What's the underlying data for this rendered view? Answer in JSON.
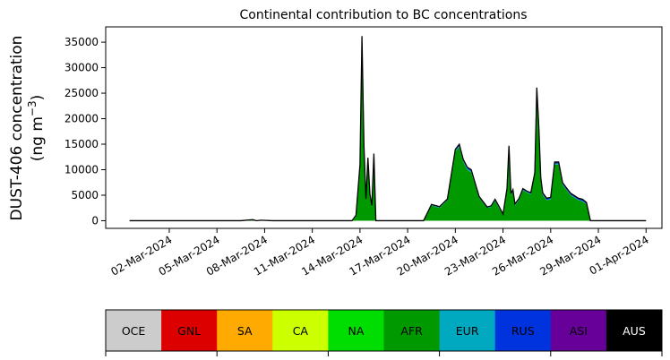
{
  "chart_data": {
    "type": "area",
    "title": "Continental contribution to BC concentrations",
    "ylabel_line1": "DUST-406 concentration",
    "ylabel_line2_prefix": "(ng m",
    "ylabel_line2_sup": "−3",
    "ylabel_line2_suffix": ")",
    "xlabel": "",
    "ylim": [
      -1500,
      38000
    ],
    "xlim": [
      "2024-02-27",
      "2024-04-02"
    ],
    "yticks": [
      0,
      5000,
      10000,
      15000,
      20000,
      25000,
      30000,
      35000
    ],
    "ytick_labels": [
      "0",
      "5000",
      "10000",
      "15000",
      "20000",
      "25000",
      "30000",
      "35000"
    ],
    "xticks": [
      "2024-03-02",
      "2024-03-05",
      "2024-03-08",
      "2024-03-11",
      "2024-03-14",
      "2024-03-17",
      "2024-03-20",
      "2024-03-23",
      "2024-03-26",
      "2024-03-29",
      "2024-04-01"
    ],
    "xtick_labels": [
      "02-Mar-2024",
      "05-Mar-2024",
      "08-Mar-2024",
      "11-Mar-2024",
      "14-Mar-2024",
      "17-Mar-2024",
      "20-Mar-2024",
      "23-Mar-2024",
      "26-Mar-2024",
      "29-Mar-2024",
      "01-Apr-2024"
    ],
    "x": [
      "2024-02-28T12:00",
      "2024-03-01T00:00",
      "2024-03-03T00:00",
      "2024-03-05T00:00",
      "2024-03-06T12:00",
      "2024-03-07T06:00",
      "2024-03-07T12:00",
      "2024-03-07T18:00",
      "2024-03-08T12:00",
      "2024-03-10T00:00",
      "2024-03-12T00:00",
      "2024-03-13T00:00",
      "2024-03-13T12:00",
      "2024-03-13T18:00",
      "2024-03-14T00:00",
      "2024-03-14T03:00",
      "2024-03-14T06:00",
      "2024-03-14T09:00",
      "2024-03-14T12:00",
      "2024-03-14T15:00",
      "2024-03-14T18:00",
      "2024-03-14T21:00",
      "2024-03-15T00:00",
      "2024-03-15T06:00",
      "2024-03-15T12:00",
      "2024-03-15T18:00",
      "2024-03-16T00:00",
      "2024-03-16T06:00",
      "2024-03-16T12:00",
      "2024-03-16T18:00",
      "2024-03-17T06:00",
      "2024-03-18T00:00",
      "2024-03-18T12:00",
      "2024-03-19T00:00",
      "2024-03-19T12:00",
      "2024-03-20T00:00",
      "2024-03-20T06:00",
      "2024-03-20T12:00",
      "2024-03-20T18:00",
      "2024-03-21T00:00",
      "2024-03-21T06:00",
      "2024-03-21T12:00",
      "2024-03-22T00:00",
      "2024-03-22T06:00",
      "2024-03-22T12:00",
      "2024-03-22T18:00",
      "2024-03-23T00:00",
      "2024-03-23T06:00",
      "2024-03-23T09:00",
      "2024-03-23T12:00",
      "2024-03-23T15:00",
      "2024-03-23T18:00",
      "2024-03-24T00:00",
      "2024-03-24T06:00",
      "2024-03-24T12:00",
      "2024-03-24T18:00",
      "2024-03-25T00:00",
      "2024-03-25T03:00",
      "2024-03-25T06:00",
      "2024-03-25T09:00",
      "2024-03-25T12:00",
      "2024-03-25T18:00",
      "2024-03-26T00:00",
      "2024-03-26T06:00",
      "2024-03-26T12:00",
      "2024-03-26T18:00",
      "2024-03-27T00:00",
      "2024-03-27T06:00",
      "2024-03-27T12:00",
      "2024-03-27T18:00",
      "2024-03-28T00:00",
      "2024-03-28T06:00",
      "2024-03-28T12:00",
      "2024-03-29T00:00",
      "2024-03-30T00:00",
      "2024-03-31T00:00",
      "2024-04-01T00:00"
    ],
    "series": [
      {
        "name": "AFR",
        "color": "#009900",
        "values": [
          0,
          0,
          0,
          0,
          0,
          200,
          0,
          100,
          0,
          0,
          0,
          0,
          0,
          800,
          10000,
          34000,
          14000,
          4000,
          12000,
          5000,
          2800,
          12800,
          0,
          0,
          0,
          0,
          0,
          0,
          0,
          0,
          0,
          0,
          3000,
          2500,
          4000,
          13500,
          14500,
          11500,
          10000,
          9500,
          7000,
          4500,
          2500,
          2700,
          3900,
          2500,
          1200,
          6000,
          14000,
          5000,
          5800,
          3000,
          4000,
          6000,
          5500,
          5200,
          9000,
          25000,
          18000,
          8000,
          5000,
          4000,
          4200,
          11000,
          11000,
          7000,
          6000,
          5000,
          4500,
          4000,
          3800,
          3200,
          0,
          0,
          0,
          0,
          0
        ]
      },
      {
        "name": "EUR",
        "color": "#00a8c0",
        "values": [
          0,
          0,
          0,
          0,
          0,
          0,
          0,
          0,
          0,
          0,
          0,
          0,
          0,
          100,
          200,
          400,
          200,
          100,
          150,
          100,
          100,
          150,
          0,
          0,
          0,
          0,
          0,
          0,
          0,
          0,
          0,
          0,
          100,
          100,
          100,
          200,
          200,
          200,
          200,
          200,
          150,
          100,
          100,
          100,
          100,
          100,
          50,
          100,
          200,
          100,
          100,
          100,
          100,
          100,
          100,
          100,
          200,
          300,
          200,
          200,
          150,
          100,
          100,
          200,
          200,
          150,
          100,
          100,
          100,
          100,
          100,
          100,
          0,
          0,
          0,
          0,
          0
        ]
      },
      {
        "name": "RUS",
        "color": "#0033dd",
        "values": [
          0,
          0,
          0,
          0,
          0,
          0,
          0,
          0,
          0,
          0,
          0,
          0,
          0,
          200,
          800,
          1800,
          600,
          150,
          200,
          150,
          100,
          200,
          0,
          0,
          0,
          0,
          0,
          0,
          0,
          0,
          0,
          0,
          100,
          150,
          150,
          300,
          300,
          300,
          300,
          300,
          200,
          150,
          100,
          100,
          200,
          200,
          50,
          200,
          500,
          200,
          200,
          200,
          200,
          200,
          200,
          200,
          200,
          800,
          500,
          300,
          300,
          300,
          300,
          300,
          300,
          300,
          300,
          300,
          300,
          300,
          300,
          300,
          0,
          0,
          0,
          0,
          0
        ]
      },
      {
        "name": "ASI",
        "color": "#660099",
        "values": [
          0,
          0,
          0,
          0,
          0,
          0,
          0,
          0,
          0,
          0,
          0,
          0,
          0,
          0,
          0,
          0,
          0,
          0,
          0,
          0,
          0,
          0,
          0,
          0,
          0,
          0,
          0,
          0,
          0,
          0,
          0,
          0,
          0,
          0,
          0,
          0,
          0,
          0,
          0,
          0,
          0,
          0,
          0,
          0,
          0,
          0,
          0,
          0,
          0,
          0,
          0,
          0,
          0,
          0,
          0,
          0,
          0,
          0,
          0,
          0,
          0,
          0,
          0,
          0,
          0,
          0,
          0,
          0,
          0,
          0,
          0,
          0,
          0,
          0,
          0,
          0,
          0
        ]
      }
    ],
    "legend": {
      "placement": "bottom",
      "items": [
        {
          "label": "OCE",
          "color": "#cccccc",
          "text_color": "#000000"
        },
        {
          "label": "GNL",
          "color": "#dd0000",
          "text_color": "#000000"
        },
        {
          "label": "SA",
          "color": "#ffaa00",
          "text_color": "#000000"
        },
        {
          "label": "CA",
          "color": "#ccff00",
          "text_color": "#000000"
        },
        {
          "label": "NA",
          "color": "#00dd00",
          "text_color": "#000000"
        },
        {
          "label": "AFR",
          "color": "#009900",
          "text_color": "#000000"
        },
        {
          "label": "EUR",
          "color": "#00a8c0",
          "text_color": "#000000"
        },
        {
          "label": "RUS",
          "color": "#0033dd",
          "text_color": "#000000"
        },
        {
          "label": "ASI",
          "color": "#660099",
          "text_color": "#000000"
        },
        {
          "label": "AUS",
          "color": "#000000",
          "text_color": "#ffffff"
        }
      ]
    },
    "grid": false
  }
}
